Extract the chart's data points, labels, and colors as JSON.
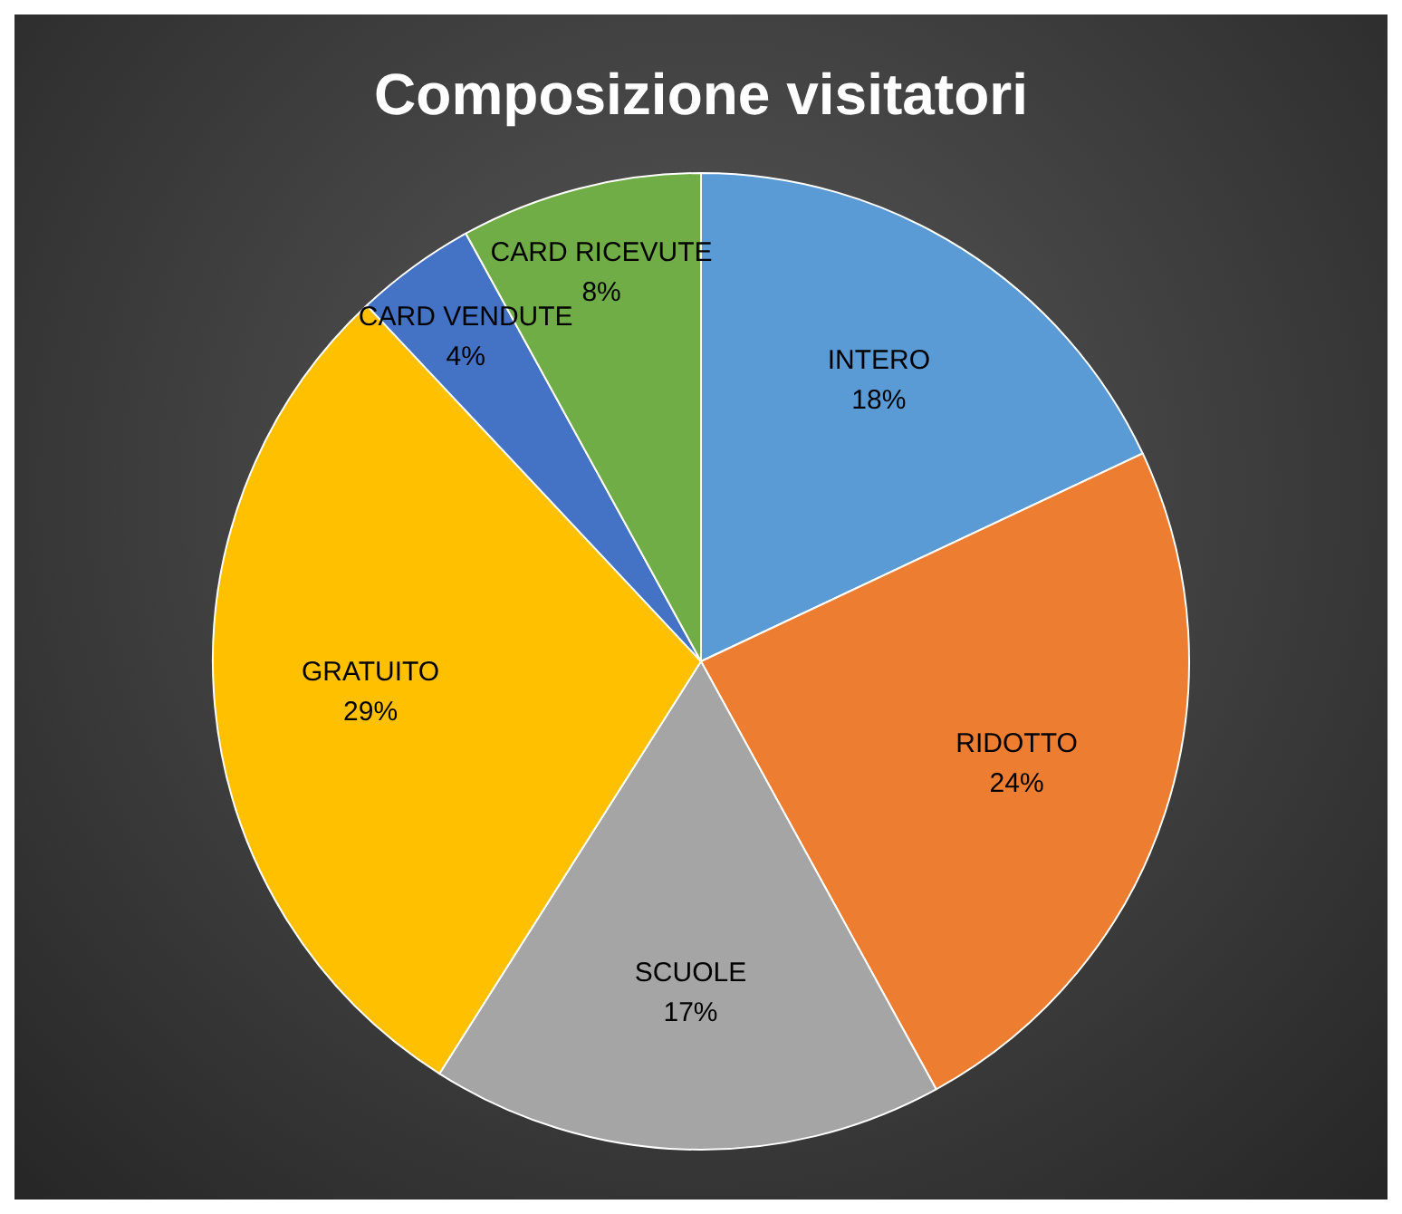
{
  "chart_data": {
    "type": "pie",
    "title": "Composizione visitatori",
    "categories": [
      "INTERO",
      "RIDOTTO",
      "SCUOLE",
      "GRATUITO",
      "CARD VENDUTE",
      "CARD RICEVUTE"
    ],
    "values": [
      18,
      24,
      17,
      29,
      4,
      8
    ],
    "colors": [
      "#5b9bd5",
      "#ed7d31",
      "#a5a5a5",
      "#ffc000",
      "#4472c4",
      "#70ad47"
    ],
    "value_labels": [
      "18%",
      "24%",
      "17%",
      "29%",
      "4%",
      "8%"
    ],
    "legend": false
  }
}
